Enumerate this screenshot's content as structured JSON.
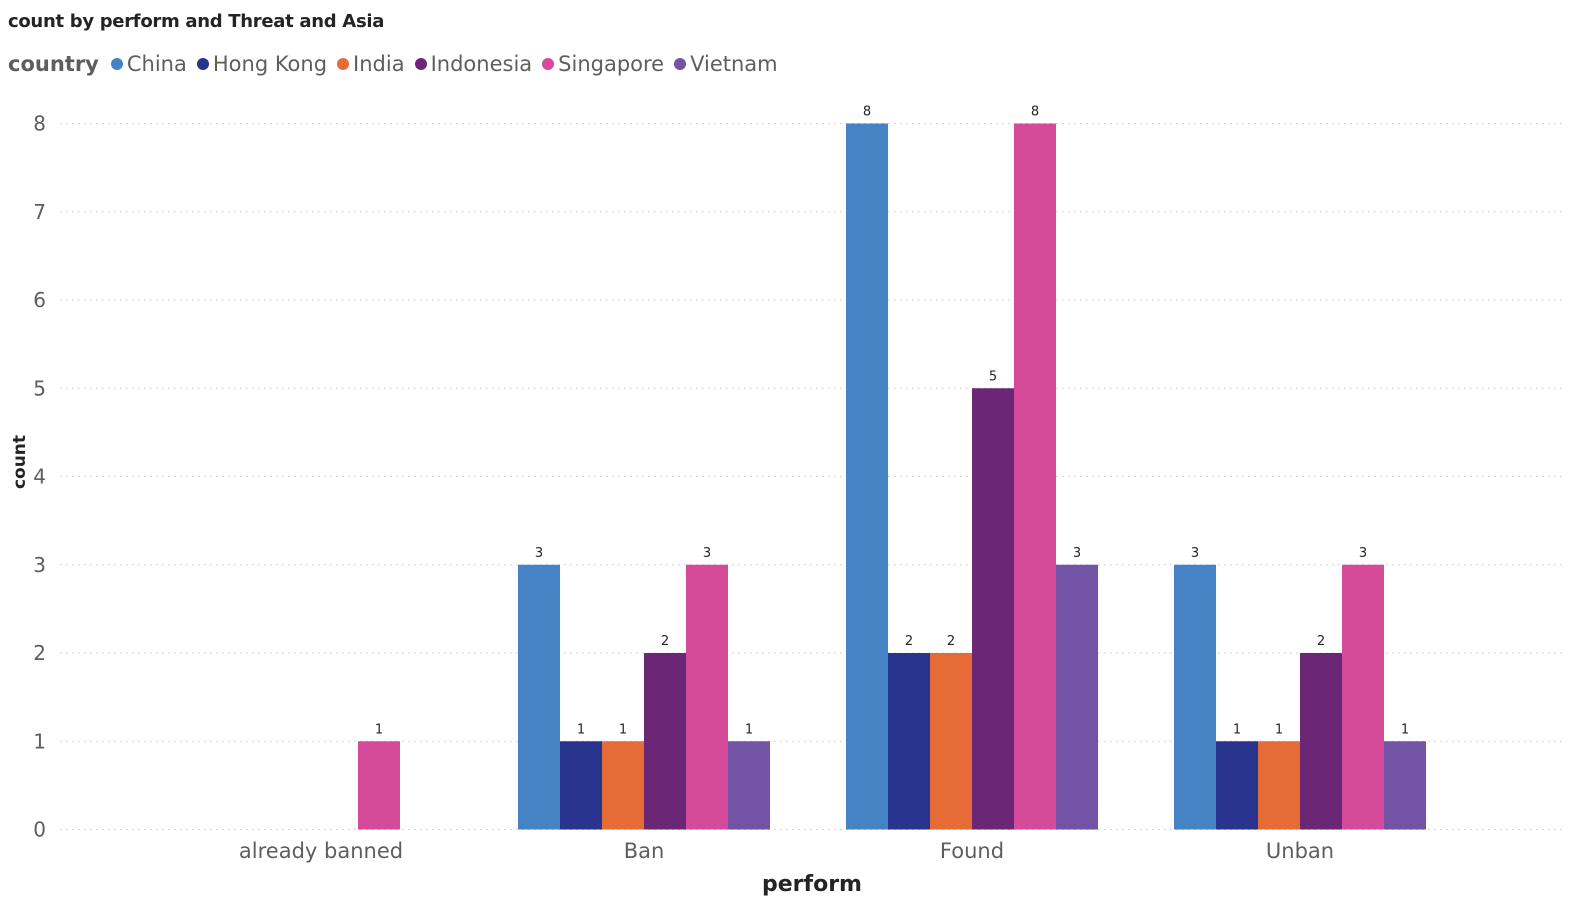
{
  "chart_data": {
    "type": "bar",
    "title": "count by perform and Threat and Asia",
    "xlabel": "perform",
    "ylabel": "count",
    "legend_title": "country",
    "legend_position": "top-left",
    "grid": true,
    "ylim": [
      0,
      8
    ],
    "yticks": [
      "0",
      "1",
      "2",
      "3",
      "4",
      "5",
      "6",
      "7",
      "8"
    ],
    "categories": [
      "already banned",
      "Ban",
      "Found",
      "Unban"
    ],
    "series": [
      {
        "name": "China",
        "color": "#4683C5",
        "values": [
          null,
          3,
          8,
          3
        ]
      },
      {
        "name": "Hong Kong",
        "color": "#29348E",
        "values": [
          null,
          1,
          2,
          1
        ]
      },
      {
        "name": "India",
        "color": "#E66C37",
        "values": [
          null,
          1,
          2,
          1
        ]
      },
      {
        "name": "Indonesia",
        "color": "#6B2775",
        "values": [
          null,
          2,
          5,
          2
        ]
      },
      {
        "name": "Singapore",
        "color": "#D64A9A",
        "values": [
          1,
          3,
          8,
          3
        ]
      },
      {
        "name": "Vietnam",
        "color": "#7353A6",
        "values": [
          null,
          1,
          3,
          1
        ]
      }
    ]
  }
}
